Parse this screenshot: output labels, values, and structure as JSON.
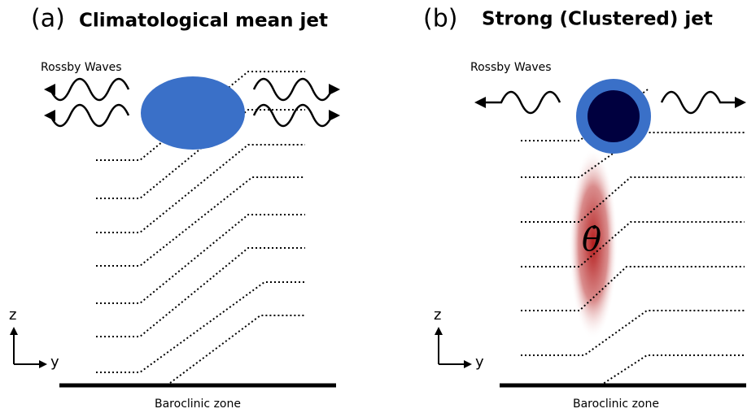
{
  "panels": [
    {
      "label": "(a)",
      "title": "Climatological mean jet",
      "wave_label": "Rossby Waves",
      "axis_z": "z",
      "axis_y": "y",
      "baseline_label": "Baroclinic zone"
    },
    {
      "label": "(b)",
      "title": "Strong (Clustered) jet",
      "wave_label": "Rossby Waves",
      "axis_z": "z",
      "axis_y": "y",
      "baseline_label": "Baroclinic zone",
      "symbol": "θ̇"
    }
  ]
}
